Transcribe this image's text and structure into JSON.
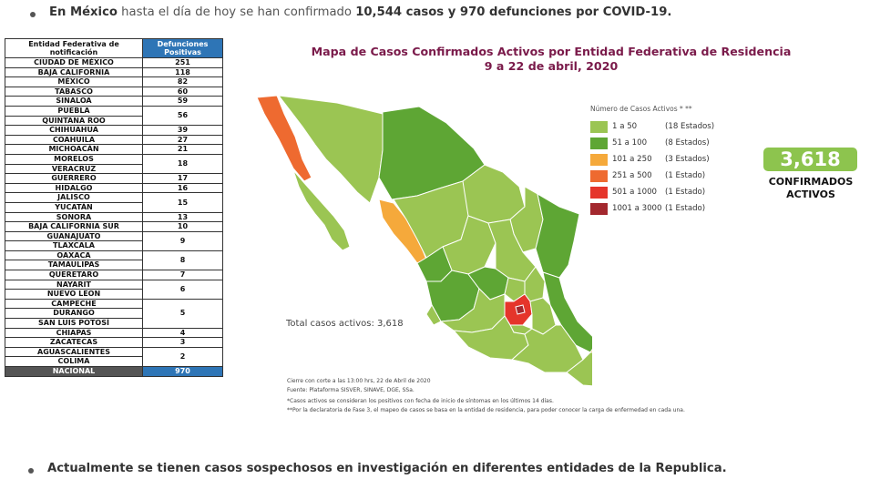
{
  "header": {
    "prefix_bold": "En México",
    "text": " hasta el día de hoy se han confirmado ",
    "bold_cases": "10,544 casos y 970 defunciones por COVID-19."
  },
  "table": {
    "col1": "Entidad Federativa de notificación",
    "col2": "Defunciones Positivas",
    "rows": [
      {
        "states": [
          "CIUDAD DE MÉXICO"
        ],
        "value": "251"
      },
      {
        "states": [
          "BAJA CALIFORNIA"
        ],
        "value": "118"
      },
      {
        "states": [
          "MÉXICO"
        ],
        "value": "82"
      },
      {
        "states": [
          "TABASCO"
        ],
        "value": "60"
      },
      {
        "states": [
          "SINALOA"
        ],
        "value": "59"
      },
      {
        "states": [
          "PUEBLA",
          "QUINTANA ROO"
        ],
        "value": "56"
      },
      {
        "states": [
          "CHIHUAHUA"
        ],
        "value": "39"
      },
      {
        "states": [
          "COAHUILA"
        ],
        "value": "27"
      },
      {
        "states": [
          "MICHOACÁN"
        ],
        "value": "21"
      },
      {
        "states": [
          "MORELOS",
          "VERACRUZ"
        ],
        "value": "18"
      },
      {
        "states": [
          "GUERRERO"
        ],
        "value": "17"
      },
      {
        "states": [
          "HIDALGO"
        ],
        "value": "16"
      },
      {
        "states": [
          "JALISCO",
          "YUCATÁN"
        ],
        "value": "15"
      },
      {
        "states": [
          "SONORA"
        ],
        "value": "13"
      },
      {
        "states": [
          "BAJA CALIFORNIA SUR"
        ],
        "value": "10"
      },
      {
        "states": [
          "GUANAJUATO",
          "TLAXCALA"
        ],
        "value": "9"
      },
      {
        "states": [
          "OAXACA",
          "TAMAULIPAS"
        ],
        "value": "8"
      },
      {
        "states": [
          "QUERETARO"
        ],
        "value": "7"
      },
      {
        "states": [
          "NAYARIT",
          "NUEVO LEON"
        ],
        "value": "6"
      },
      {
        "states": [
          "CAMPECHE",
          "DURANGO",
          "SAN LUIS POTOSÍ"
        ],
        "value": "5"
      },
      {
        "states": [
          "CHIAPAS"
        ],
        "value": "4"
      },
      {
        "states": [
          "ZACATECAS"
        ],
        "value": "3"
      },
      {
        "states": [
          "AGUASCALIENTES",
          "COLIMA"
        ],
        "value": "2"
      }
    ],
    "total_label": "NACIONAL",
    "total_value": "970"
  },
  "map": {
    "title_line1": "Mapa de Casos Confirmados Activos por Entidad Federativa de Residencia",
    "title_line2": "9 a 22 de abril, 2020",
    "legend_title": "Número de Casos Activos * **",
    "legend": [
      {
        "range": "1 a 50",
        "count": "(18 Estados)",
        "color": "#9bc553"
      },
      {
        "range": "51 a 100",
        "count": "(8 Estados)",
        "color": "#5ea634"
      },
      {
        "range": "101 a 250",
        "count": "(3 Estados)",
        "color": "#f5a93b"
      },
      {
        "range": "251 a 500",
        "count": "(1 Estado)",
        "color": "#ee6a30"
      },
      {
        "range": "501 a 1000",
        "count": "(1 Estado)",
        "color": "#e5352b"
      },
      {
        "range": "1001 a 3000",
        "count": "(1 Estado)",
        "color": "#a3282e"
      }
    ],
    "total_active": "Total casos activos: 3,618",
    "notes": [
      "Cierre con corte a las 13:00 hrs, 22 de Abril de 2020",
      "Fuente: Plataforma SISVER, SINAVE, DGE, SSa.",
      "*Casos activos se consideran los positivos con fecha de inicio de síntomas en los últimos 14 días.",
      "**Por la declaratoria de Fase 3, el mapeo de casos se basa en la entidad de residencia, para poder conocer la carga de enfermedad en cada una."
    ]
  },
  "badge": {
    "value": "3,618",
    "label_line1": "CONFIRMADOS",
    "label_line2": "ACTIVOS"
  },
  "footer": {
    "text": "Actualmente se tienen casos sospechosos en investigación en diferentes entidades de la Republica."
  }
}
